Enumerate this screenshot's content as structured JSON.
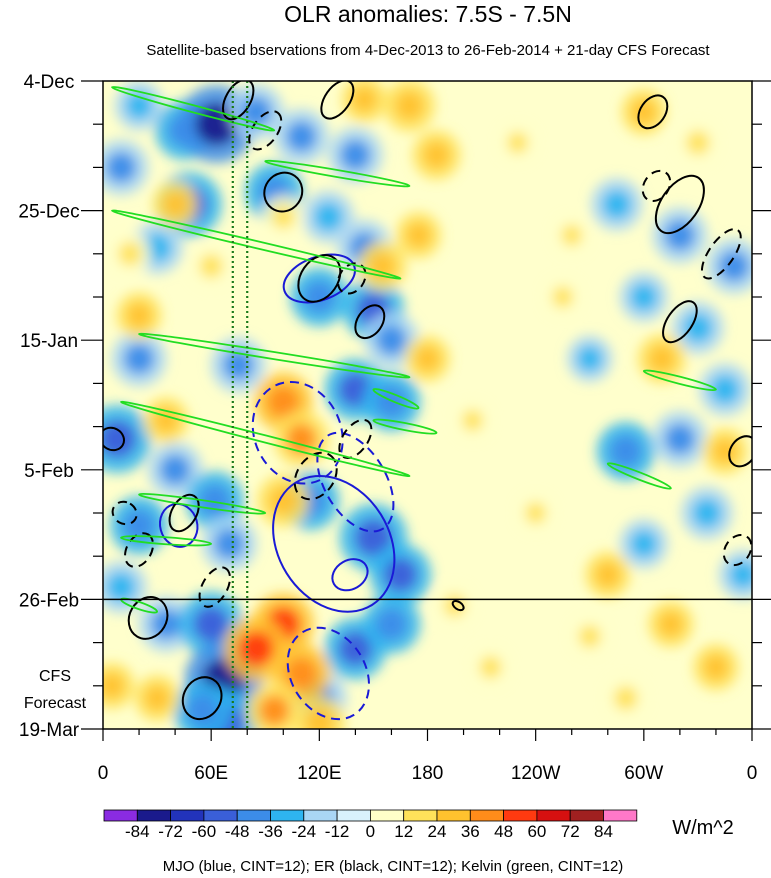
{
  "chart_data": {
    "type": "heatmap",
    "title": "OLR anomalies: 7.5S - 7.5N",
    "subtitle": "Satellite-based bservations from 4-Dec-2013 to 26-Feb-2014 + 21-day CFS Forecast",
    "x_ticks": [
      "0",
      "60E",
      "120E",
      "180",
      "120W",
      "60W",
      "0"
    ],
    "x_tick_lon": [
      0,
      60,
      120,
      180,
      240,
      300,
      360
    ],
    "xlim": [
      0,
      360
    ],
    "y_ticks": [
      "4-Dec",
      "25-Dec",
      "15-Jan",
      "5-Feb",
      "26-Feb",
      "19-Mar"
    ],
    "y_tick_day": [
      0,
      21,
      42,
      63,
      84,
      105
    ],
    "ylim": [
      0,
      105
    ],
    "forecast_label": [
      "CFS",
      "Forecast"
    ],
    "forecast_start_day": 84,
    "reference_lines_lon": [
      72,
      80
    ],
    "colorbar": {
      "unit": "W/m^2",
      "levels": [
        "-84",
        "-72",
        "-60",
        "-48",
        "-36",
        "-24",
        "-12",
        "0",
        "12",
        "24",
        "36",
        "48",
        "60",
        "72",
        "84"
      ],
      "colors": [
        "#8a2be2",
        "#1a1a8c",
        "#2233bb",
        "#3a5fd8",
        "#3c8ce8",
        "#2eb4f0",
        "#a9d6f5",
        "#d9f2fc",
        "#ffffc8",
        "#ffe25a",
        "#ffc22e",
        "#ff8c1a",
        "#ff3a10",
        "#d61010",
        "#a02020",
        "#ff78c8"
      ]
    },
    "legend_text": "MJO (blue, CINT=12); ER (black, CINT=12); Kelvin (green, CINT=12)",
    "series": [
      {
        "name": "MJO",
        "color": "#1a1ad6"
      },
      {
        "name": "ER",
        "color": "#000000"
      },
      {
        "name": "Kelvin",
        "color": "#22dd22"
      }
    ],
    "anomaly_blobs": [
      {
        "lon": 20,
        "day": 4,
        "v": -30
      },
      {
        "lon": 45,
        "day": 8,
        "v": -45
      },
      {
        "lon": 63,
        "day": 7,
        "v": -75
      },
      {
        "lon": 85,
        "day": 5,
        "v": -40
      },
      {
        "lon": 110,
        "day": 9,
        "v": -40
      },
      {
        "lon": 140,
        "day": 12,
        "v": -40
      },
      {
        "lon": 10,
        "day": 14,
        "v": -40
      },
      {
        "lon": 48,
        "day": 20,
        "v": -55
      },
      {
        "lon": 95,
        "day": 18,
        "v": -45
      },
      {
        "lon": 125,
        "day": 22,
        "v": -35
      },
      {
        "lon": 145,
        "day": 27,
        "v": -40
      },
      {
        "lon": 30,
        "day": 27,
        "v": -35
      },
      {
        "lon": 120,
        "day": 35,
        "v": -45
      },
      {
        "lon": 150,
        "day": 37,
        "v": -50
      },
      {
        "lon": 160,
        "day": 42,
        "v": -40
      },
      {
        "lon": 20,
        "day": 45,
        "v": -40
      },
      {
        "lon": 75,
        "day": 46,
        "v": -40
      },
      {
        "lon": 140,
        "day": 50,
        "v": -50
      },
      {
        "lon": 160,
        "day": 52,
        "v": -45
      },
      {
        "lon": 8,
        "day": 58,
        "v": -60
      },
      {
        "lon": 40,
        "day": 63,
        "v": -40
      },
      {
        "lon": 62,
        "day": 68,
        "v": -45
      },
      {
        "lon": 20,
        "day": 72,
        "v": -45
      },
      {
        "lon": 70,
        "day": 75,
        "v": -40
      },
      {
        "lon": 115,
        "day": 68,
        "v": -45
      },
      {
        "lon": 150,
        "day": 74,
        "v": -60
      },
      {
        "lon": 165,
        "day": 80,
        "v": -50
      },
      {
        "lon": 10,
        "day": 82,
        "v": -35
      },
      {
        "lon": 35,
        "day": 88,
        "v": -40
      },
      {
        "lon": 60,
        "day": 88,
        "v": -55
      },
      {
        "lon": 67,
        "day": 97,
        "v": -75
      },
      {
        "lon": 68,
        "day": 104,
        "v": -60
      },
      {
        "lon": 55,
        "day": 102,
        "v": -45
      },
      {
        "lon": 140,
        "day": 92,
        "v": -50
      },
      {
        "lon": 160,
        "day": 88,
        "v": -45
      },
      {
        "lon": 120,
        "day": 100,
        "v": -40
      },
      {
        "lon": 285,
        "day": 20,
        "v": -35
      },
      {
        "lon": 320,
        "day": 25,
        "v": -40
      },
      {
        "lon": 300,
        "day": 35,
        "v": -30
      },
      {
        "lon": 330,
        "day": 40,
        "v": -35
      },
      {
        "lon": 350,
        "day": 30,
        "v": -40
      },
      {
        "lon": 290,
        "day": 60,
        "v": -45
      },
      {
        "lon": 320,
        "day": 58,
        "v": -40
      },
      {
        "lon": 345,
        "day": 50,
        "v": -35
      },
      {
        "lon": 300,
        "day": 75,
        "v": -30
      },
      {
        "lon": 335,
        "day": 70,
        "v": -35
      },
      {
        "lon": 355,
        "day": 80,
        "v": -30
      },
      {
        "lon": 270,
        "day": 45,
        "v": -25
      },
      {
        "lon": 100,
        "day": 52,
        "v": 45
      },
      {
        "lon": 110,
        "day": 58,
        "v": 40
      },
      {
        "lon": 100,
        "day": 68,
        "v": 35
      },
      {
        "lon": 100,
        "day": 88,
        "v": 50
      },
      {
        "lon": 110,
        "day": 96,
        "v": 45
      },
      {
        "lon": 95,
        "day": 102,
        "v": 40
      },
      {
        "lon": 120,
        "day": 104,
        "v": 35
      },
      {
        "lon": 85,
        "day": 92,
        "v": 55
      },
      {
        "lon": 170,
        "day": 4,
        "v": 35
      },
      {
        "lon": 185,
        "day": 12,
        "v": 30
      },
      {
        "lon": 155,
        "day": 30,
        "v": 30
      },
      {
        "lon": 175,
        "day": 25,
        "v": 25
      },
      {
        "lon": 180,
        "day": 45,
        "v": 25
      },
      {
        "lon": 145,
        "day": 3,
        "v": 25
      },
      {
        "lon": 100,
        "day": 22,
        "v": 20
      },
      {
        "lon": 60,
        "day": 30,
        "v": 20
      },
      {
        "lon": 20,
        "day": 38,
        "v": 25
      },
      {
        "lon": 35,
        "day": 55,
        "v": 25
      },
      {
        "lon": 5,
        "day": 98,
        "v": 25
      },
      {
        "lon": 30,
        "day": 100,
        "v": 25
      },
      {
        "lon": 40,
        "day": 20,
        "v": 25
      },
      {
        "lon": 15,
        "day": 28,
        "v": 20
      },
      {
        "lon": 230,
        "day": 10,
        "v": 12
      },
      {
        "lon": 255,
        "day": 35,
        "v": 12
      },
      {
        "lon": 240,
        "day": 70,
        "v": 12
      },
      {
        "lon": 215,
        "day": 95,
        "v": 15
      },
      {
        "lon": 270,
        "day": 90,
        "v": 15
      },
      {
        "lon": 260,
        "day": 25,
        "v": 12
      },
      {
        "lon": 300,
        "day": 5,
        "v": 25
      },
      {
        "lon": 330,
        "day": 10,
        "v": 20
      },
      {
        "lon": 310,
        "day": 45,
        "v": 30
      },
      {
        "lon": 345,
        "day": 60,
        "v": 25
      },
      {
        "lon": 280,
        "day": 80,
        "v": 25
      },
      {
        "lon": 340,
        "day": 95,
        "v": 25
      },
      {
        "lon": 290,
        "day": 100,
        "v": 20
      },
      {
        "lon": 315,
        "day": 88,
        "v": 25
      },
      {
        "lon": 205,
        "day": 55,
        "v": 12
      },
      {
        "lon": 195,
        "day": 85,
        "v": 15
      }
    ],
    "mjo_contours": [
      {
        "lon": 120,
        "day": 32,
        "rx": 12,
        "ry": 6,
        "rot": 70,
        "dash": false
      },
      {
        "lon": 108,
        "day": 57,
        "rx": 29,
        "ry": 7,
        "rot": 65,
        "dash": true
      },
      {
        "lon": 128,
        "day": 75,
        "rx": 40,
        "ry": 9,
        "rot": 58,
        "dash": false
      },
      {
        "lon": 137,
        "day": 80,
        "rx": 8,
        "ry": 3,
        "rot": 60,
        "dash": false
      },
      {
        "lon": 125,
        "day": 96,
        "rx": 27,
        "ry": 6,
        "rot": 58,
        "dash": true
      },
      {
        "lon": 42,
        "day": 72,
        "rx": 12,
        "ry": 3,
        "rot": 75,
        "dash": false
      },
      {
        "lon": 140,
        "day": 65,
        "rx": 30,
        "ry": 5,
        "rot": 60,
        "dash": true
      }
    ],
    "er_contours": [
      {
        "lon": 75,
        "day": 3,
        "rx": 12,
        "ry": 2,
        "rot": -60,
        "dash": false
      },
      {
        "lon": 90,
        "day": 8,
        "rx": 12,
        "ry": 2,
        "rot": -55,
        "dash": true
      },
      {
        "lon": 100,
        "day": 18,
        "rx": 11,
        "ry": 3,
        "rot": -55,
        "dash": false
      },
      {
        "lon": 120,
        "day": 32,
        "rx": 14,
        "ry": 3,
        "rot": -55,
        "dash": false
      },
      {
        "lon": 138,
        "day": 32,
        "rx": 9,
        "ry": 2,
        "rot": -55,
        "dash": true
      },
      {
        "lon": 148,
        "day": 39,
        "rx": 10,
        "ry": 2,
        "rot": -55,
        "dash": false
      },
      {
        "lon": 140,
        "day": 58,
        "rx": 12,
        "ry": 2,
        "rot": -55,
        "dash": true
      },
      {
        "lon": 118,
        "day": 64,
        "rx": 14,
        "ry": 3,
        "rot": -55,
        "dash": true
      },
      {
        "lon": 20,
        "day": 76,
        "rx": 10,
        "ry": 2,
        "rot": -60,
        "dash": true
      },
      {
        "lon": 45,
        "day": 70,
        "rx": 11,
        "ry": 2,
        "rot": -60,
        "dash": false
      },
      {
        "lon": 62,
        "day": 82,
        "rx": 12,
        "ry": 2,
        "rot": -60,
        "dash": true
      },
      {
        "lon": 25,
        "day": 87,
        "rx": 12,
        "ry": 3,
        "rot": -60,
        "dash": false
      },
      {
        "lon": 55,
        "day": 100,
        "rx": 12,
        "ry": 3,
        "rot": -60,
        "dash": false
      },
      {
        "lon": 130,
        "day": 3,
        "rx": 12,
        "ry": 2,
        "rot": -55,
        "dash": false
      },
      {
        "lon": 305,
        "day": 5,
        "rx": 10,
        "ry": 2,
        "rot": -55,
        "dash": false
      },
      {
        "lon": 320,
        "day": 20,
        "rx": 18,
        "ry": 3,
        "rot": -55,
        "dash": false
      },
      {
        "lon": 343,
        "day": 28,
        "rx": 16,
        "ry": 2,
        "rot": -55,
        "dash": true
      },
      {
        "lon": 320,
        "day": 39,
        "rx": 13,
        "ry": 2,
        "rot": -55,
        "dash": false
      },
      {
        "lon": 307,
        "day": 17,
        "rx": 9,
        "ry": 2,
        "rot": -55,
        "dash": true
      },
      {
        "lon": 355,
        "day": 60,
        "rx": 9,
        "ry": 2,
        "rot": -55,
        "dash": false
      },
      {
        "lon": 352,
        "day": 76,
        "rx": 9,
        "ry": 2,
        "rot": -55,
        "dash": true
      },
      {
        "lon": 5,
        "day": 58,
        "rx": 6,
        "ry": 2,
        "rot": -60,
        "dash": false
      },
      {
        "lon": 12,
        "day": 70,
        "rx": 6,
        "ry": 2,
        "rot": -60,
        "dash": true
      },
      {
        "lon": 197,
        "day": 85,
        "rx": 2,
        "ry": 1,
        "rot": -55,
        "dash": false
      }
    ],
    "kelvin_contours": [
      {
        "lon0": 5,
        "day0": 1,
        "lon1": 95,
        "day1": 8
      },
      {
        "lon0": 90,
        "day0": 13,
        "lon1": 170,
        "day1": 17
      },
      {
        "lon0": 5,
        "day0": 21,
        "lon1": 165,
        "day1": 32
      },
      {
        "lon0": 20,
        "day0": 41,
        "lon1": 170,
        "day1": 48
      },
      {
        "lon0": 10,
        "day0": 52,
        "lon1": 170,
        "day1": 64
      },
      {
        "lon0": 150,
        "day0": 55,
        "lon1": 185,
        "day1": 57
      },
      {
        "lon0": 20,
        "day0": 67,
        "lon1": 90,
        "day1": 70
      },
      {
        "lon0": 10,
        "day0": 74,
        "lon1": 60,
        "day1": 75
      },
      {
        "lon0": 10,
        "day0": 84,
        "lon1": 30,
        "day1": 86
      },
      {
        "lon0": 300,
        "day0": 47,
        "lon1": 340,
        "day1": 50
      },
      {
        "lon0": 280,
        "day0": 62,
        "lon1": 315,
        "day1": 66
      },
      {
        "lon0": 150,
        "day0": 50,
        "lon1": 175,
        "day1": 53
      }
    ]
  }
}
